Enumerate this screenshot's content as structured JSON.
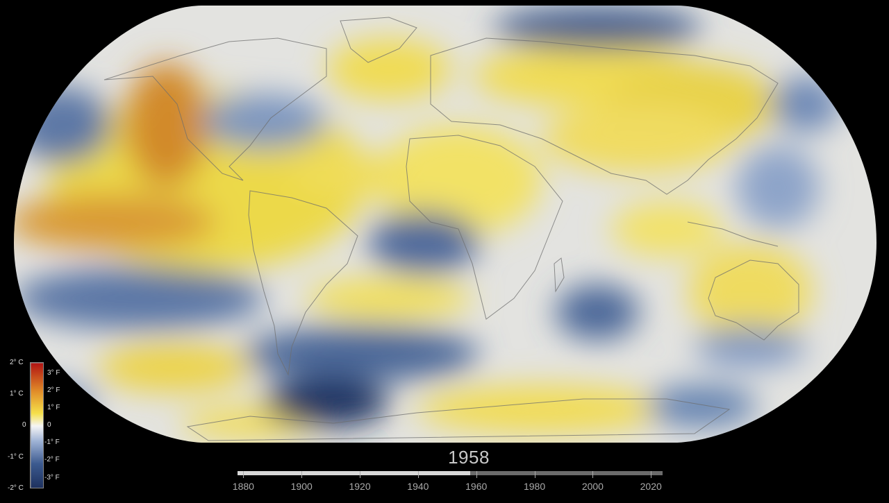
{
  "colors": {
    "background": "#000000",
    "warm": "#f2e04a",
    "hot": "#c8561b",
    "cool": "#8fa6c9",
    "cold": "#2d4a79",
    "neutral": "#e6e3dc"
  },
  "legend": {
    "celsius": [
      "2° C",
      "1° C",
      "0",
      "-1° C",
      "-2° C"
    ],
    "fahrenheit": [
      "3° F",
      "2° F",
      "1° F",
      "0",
      "-1° F",
      "-2° F",
      "-3° F"
    ]
  },
  "timeline": {
    "current_year": "1958",
    "range": [
      1878,
      2024
    ],
    "ticks": [
      "1880",
      "1900",
      "1920",
      "1940",
      "1960",
      "1980",
      "2000",
      "2020"
    ],
    "progress_year": 1958
  }
}
